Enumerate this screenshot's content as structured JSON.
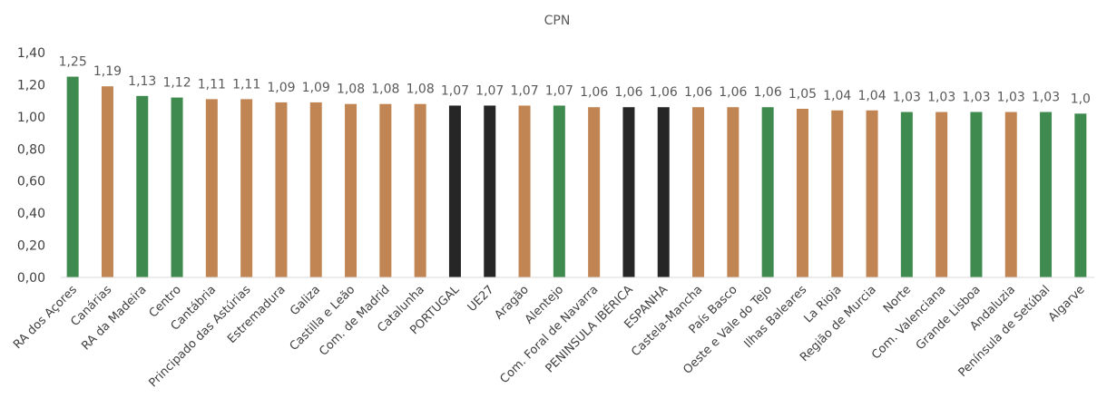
{
  "chart_data": {
    "type": "bar",
    "title": "CPN",
    "xlabel": "",
    "ylabel": "",
    "ylim": [
      0,
      1.4
    ],
    "yticks": [
      "0,00",
      "0,20",
      "0,40",
      "0,60",
      "0,80",
      "1,00",
      "1,20",
      "1,40"
    ],
    "grid": false,
    "legend": "none",
    "colors": {
      "portugal_region": "#3f8a4f",
      "spain_region": "#c08552",
      "aggregate": "#262626"
    },
    "categories": [
      "RA dos Açores",
      "Canárias",
      "RA da Madeira",
      "Centro",
      "Cantábria",
      "Principado das Astúrias",
      "Estremadura",
      "Galiza",
      "Castilla e Leão",
      "Com. de Madrid",
      "Catalunha",
      "PORTUGAL",
      "UE27",
      "Aragão",
      "Alentejo",
      "Com. Foral de Navarra",
      "PENINSULA IBÉRICA",
      "ESPANHA",
      "Castela-Mancha",
      "País Basco",
      "Oeste e Vale do Tejo",
      "Ilhas Baleares",
      "La Rioja",
      "Região de Murcia",
      "Norte",
      "Com. Valenciana",
      "Grande Lisboa",
      "Andaluzia",
      "Península de Setúbal",
      "Algarve"
    ],
    "values": [
      1.25,
      1.19,
      1.13,
      1.12,
      1.11,
      1.11,
      1.09,
      1.09,
      1.08,
      1.08,
      1.08,
      1.07,
      1.07,
      1.07,
      1.07,
      1.06,
      1.06,
      1.06,
      1.06,
      1.06,
      1.06,
      1.05,
      1.04,
      1.04,
      1.03,
      1.03,
      1.03,
      1.03,
      1.03,
      1.02
    ],
    "data_labels": [
      "1,25",
      "1,19",
      "1,13",
      "1,12",
      "1,11",
      "1,11",
      "1,09",
      "1,09",
      "1,08",
      "1,08",
      "1,08",
      "1,07",
      "1,07",
      "1,07",
      "1,07",
      "1,06",
      "1,06",
      "1,06",
      "1,06",
      "1,06",
      "1,06",
      "1,05",
      "1,04",
      "1,04",
      "1,03",
      "1,03",
      "1,03",
      "1,03",
      "1,03",
      "1,0"
    ],
    "bar_groups": [
      "portugal_region",
      "spain_region",
      "portugal_region",
      "portugal_region",
      "spain_region",
      "spain_region",
      "spain_region",
      "spain_region",
      "spain_region",
      "spain_region",
      "spain_region",
      "aggregate",
      "aggregate",
      "spain_region",
      "portugal_region",
      "spain_region",
      "aggregate",
      "aggregate",
      "spain_region",
      "spain_region",
      "portugal_region",
      "spain_region",
      "spain_region",
      "spain_region",
      "portugal_region",
      "spain_region",
      "portugal_region",
      "spain_region",
      "portugal_region",
      "portugal_region"
    ]
  }
}
